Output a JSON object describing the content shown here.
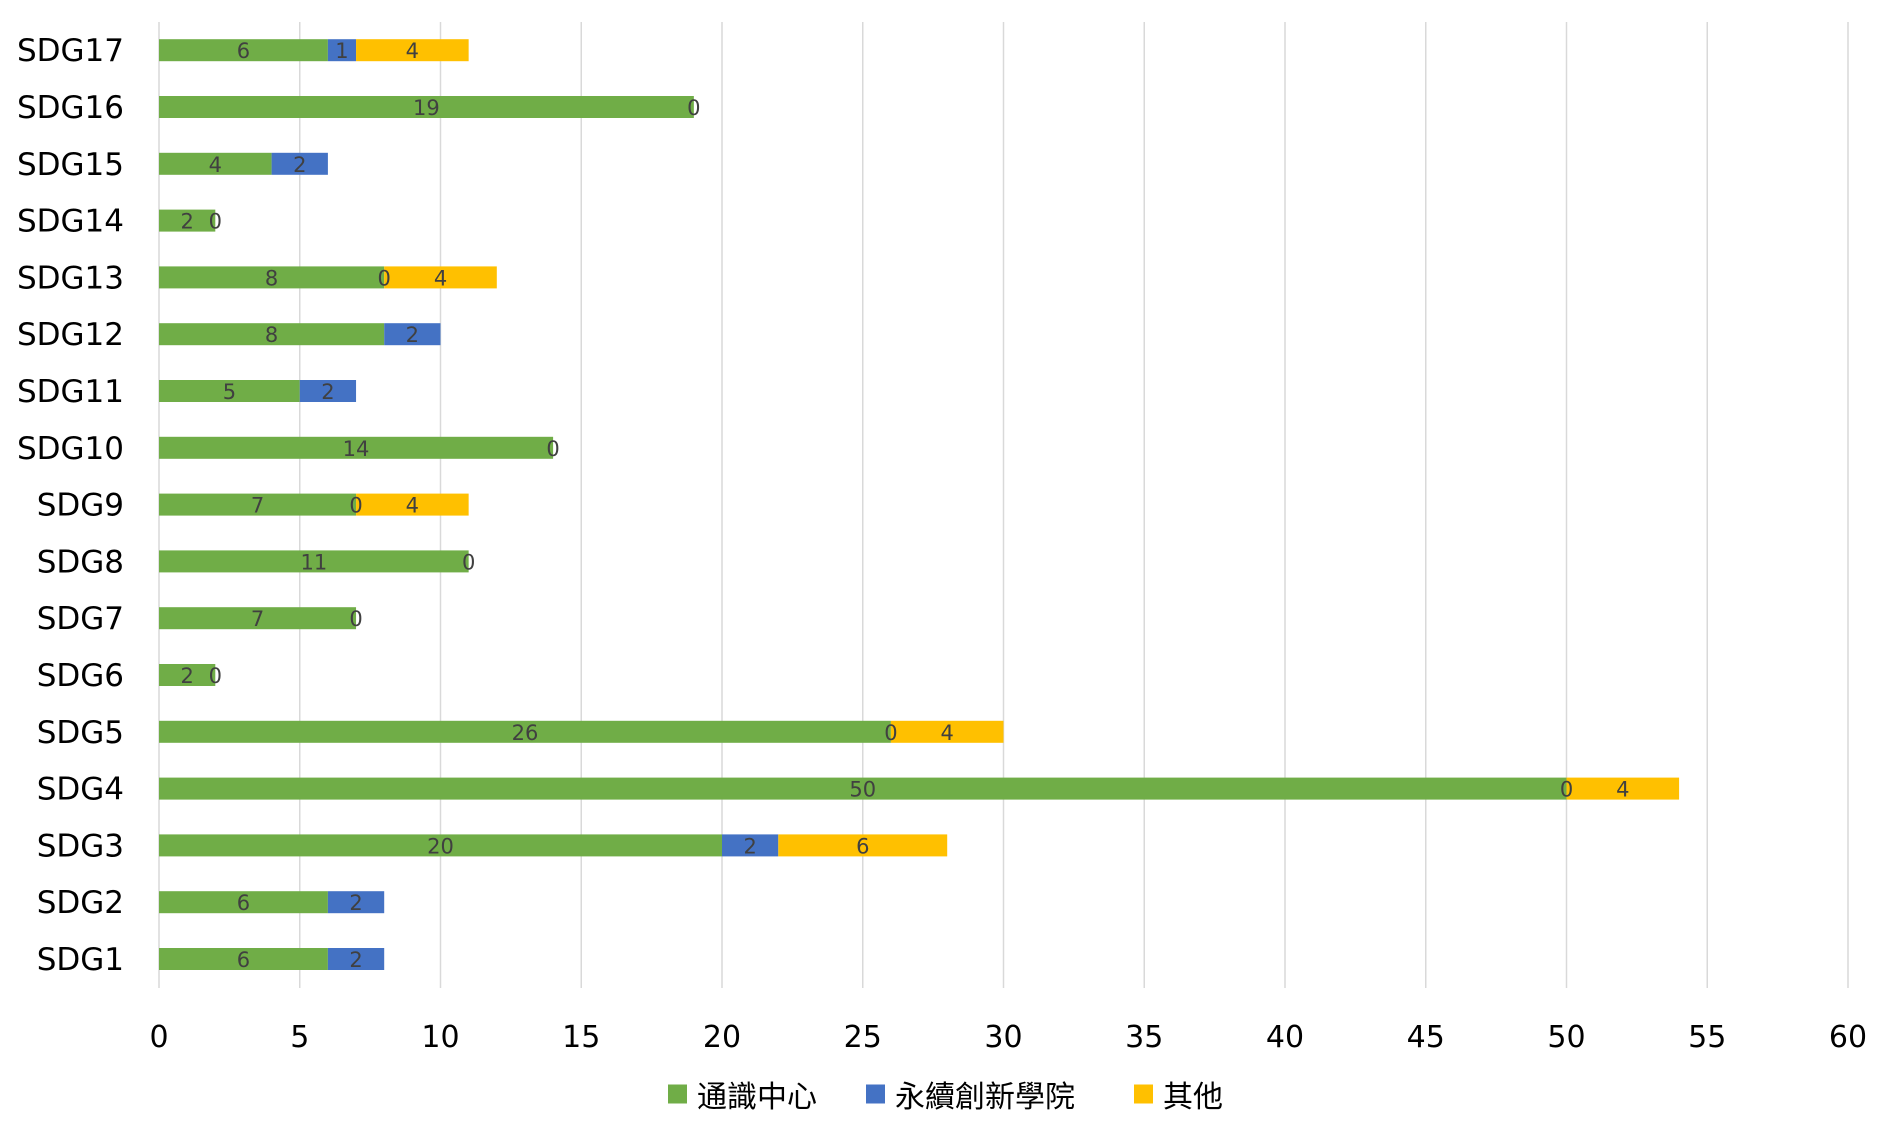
{
  "chart_data": {
    "type": "bar",
    "orientation": "horizontal",
    "stacked": true,
    "categories": [
      "SDG1",
      "SDG2",
      "SDG3",
      "SDG4",
      "SDG5",
      "SDG6",
      "SDG7",
      "SDG8",
      "SDG9",
      "SDG10",
      "SDG11",
      "SDG12",
      "SDG13",
      "SDG14",
      "SDG15",
      "SDG16",
      "SDG17"
    ],
    "series": [
      {
        "name": "通識中心",
        "color": "#70ad47",
        "values": [
          6,
          6,
          20,
          50,
          26,
          2,
          7,
          11,
          7,
          14,
          5,
          8,
          8,
          2,
          4,
          19,
          6
        ]
      },
      {
        "name": "永續創新學院",
        "color": "#4472c4",
        "values": [
          2,
          2,
          2,
          0,
          0,
          0,
          0,
          0,
          0,
          0,
          2,
          2,
          0,
          0,
          2,
          0,
          1
        ]
      },
      {
        "name": "其他",
        "color": "#ffc000",
        "values": [
          0,
          0,
          6,
          4,
          4,
          0,
          0,
          0,
          4,
          0,
          0,
          0,
          4,
          0,
          0,
          0,
          4
        ]
      }
    ],
    "zero_labels_shown": {
      "永續創新學院": [
        true,
        true,
        false,
        true,
        true,
        true,
        true,
        true,
        true,
        true,
        false,
        false,
        true,
        true,
        false,
        true,
        false
      ]
    },
    "xlim": [
      0,
      60
    ],
    "xticks": [
      0,
      5,
      10,
      15,
      20,
      25,
      30,
      35,
      40,
      45,
      50,
      55,
      60
    ],
    "grid": "vertical",
    "legend": "bottom",
    "title": "",
    "xlabel": "",
    "ylabel": ""
  }
}
